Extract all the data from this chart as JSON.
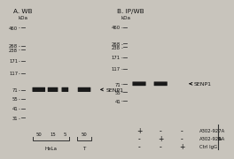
{
  "bg_color": "#c8c4bc",
  "panel_bg_A": "#dedad2",
  "panel_bg_B": "#dedad2",
  "outer_bg": "#b8b4ac",
  "title_A": "A. WB",
  "title_B": "B. IP/WB",
  "kda_label": "kDa",
  "mw_marks_A": [
    460,
    268,
    238,
    171,
    117,
    71,
    55,
    41,
    31
  ],
  "mw_marks_B": [
    460,
    268,
    238,
    171,
    117,
    71,
    55,
    41
  ],
  "senp1_label": "◄ SENP1",
  "band_color": "#1a1a1a",
  "line_color": "#333333",
  "tick_color": "#333333",
  "text_color": "#111111",
  "lanes_A_labels": [
    "50",
    "15",
    "5",
    "50"
  ],
  "lanes_B_row_labels": [
    "A302-927A",
    "A302-928A",
    "Ctrl IgG"
  ],
  "ip_label": "IP",
  "dot_pattern": [
    [
      "+",
      "-",
      "-"
    ],
    [
      "-",
      "+",
      "-"
    ],
    [
      "-",
      "-",
      "+"
    ]
  ]
}
